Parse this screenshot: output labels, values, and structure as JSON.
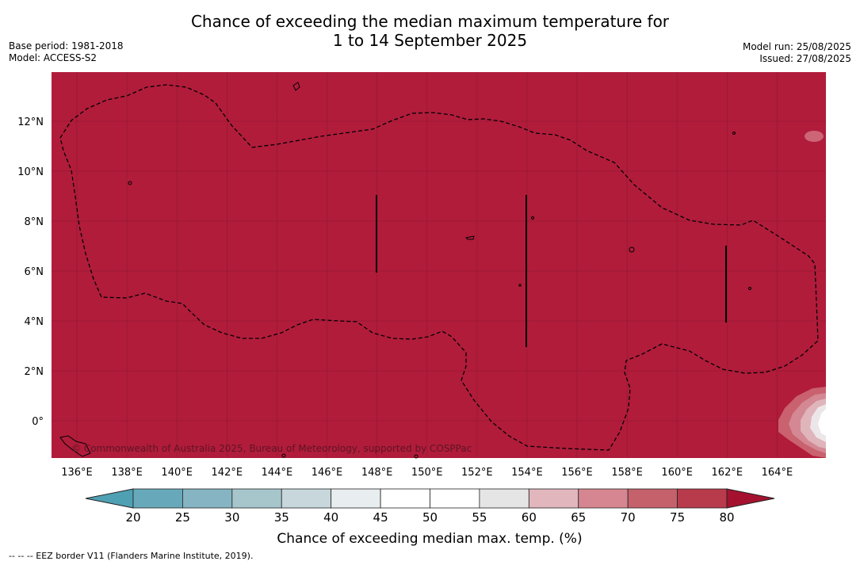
{
  "title_line1": "Chance of exceeding the median maximum temperature for",
  "title_line2": "1 to 14 September 2025",
  "base_period": "Base period: 1981-2018",
  "model": "Model: ACCESS-S2",
  "model_run": "Model run: 25/08/2025",
  "issued": "Issued: 27/08/2025",
  "map": {
    "background_color": "#b11c3b",
    "x_ticks": [
      "136°E",
      "138°E",
      "140°E",
      "142°E",
      "144°E",
      "146°E",
      "148°E",
      "150°E",
      "152°E",
      "154°E",
      "156°E",
      "158°E",
      "160°E",
      "162°E",
      "164°E"
    ],
    "y_ticks": [
      "12°N",
      "10°N",
      "8°N",
      "6°N",
      "4°N",
      "2°N",
      "0°"
    ],
    "copyright": "© Commonwealth of Australia 2025, Bureau of Meteorology, supported by COSPPac"
  },
  "colorbar": {
    "title": "Chance of exceeding median max. temp. (%)",
    "labels": [
      "20",
      "25",
      "30",
      "35",
      "40",
      "45",
      "50",
      "55",
      "60",
      "65",
      "70",
      "75",
      "80"
    ],
    "low_extend_color": "#4fa0b3",
    "high_extend_color": "#a5122f",
    "bins": [
      "#67a9bb",
      "#86b4c2",
      "#a6c6cc",
      "#c7d7dc",
      "#e8edf0",
      "#ffffff",
      "#ffffff",
      "#e6e5e6",
      "#e1b6bd",
      "#d68690",
      "#c5616b",
      "#b73b4b"
    ]
  },
  "footnote": "--  --  -- EEZ border V11 (Flanders Marine Institute, 2019)."
}
